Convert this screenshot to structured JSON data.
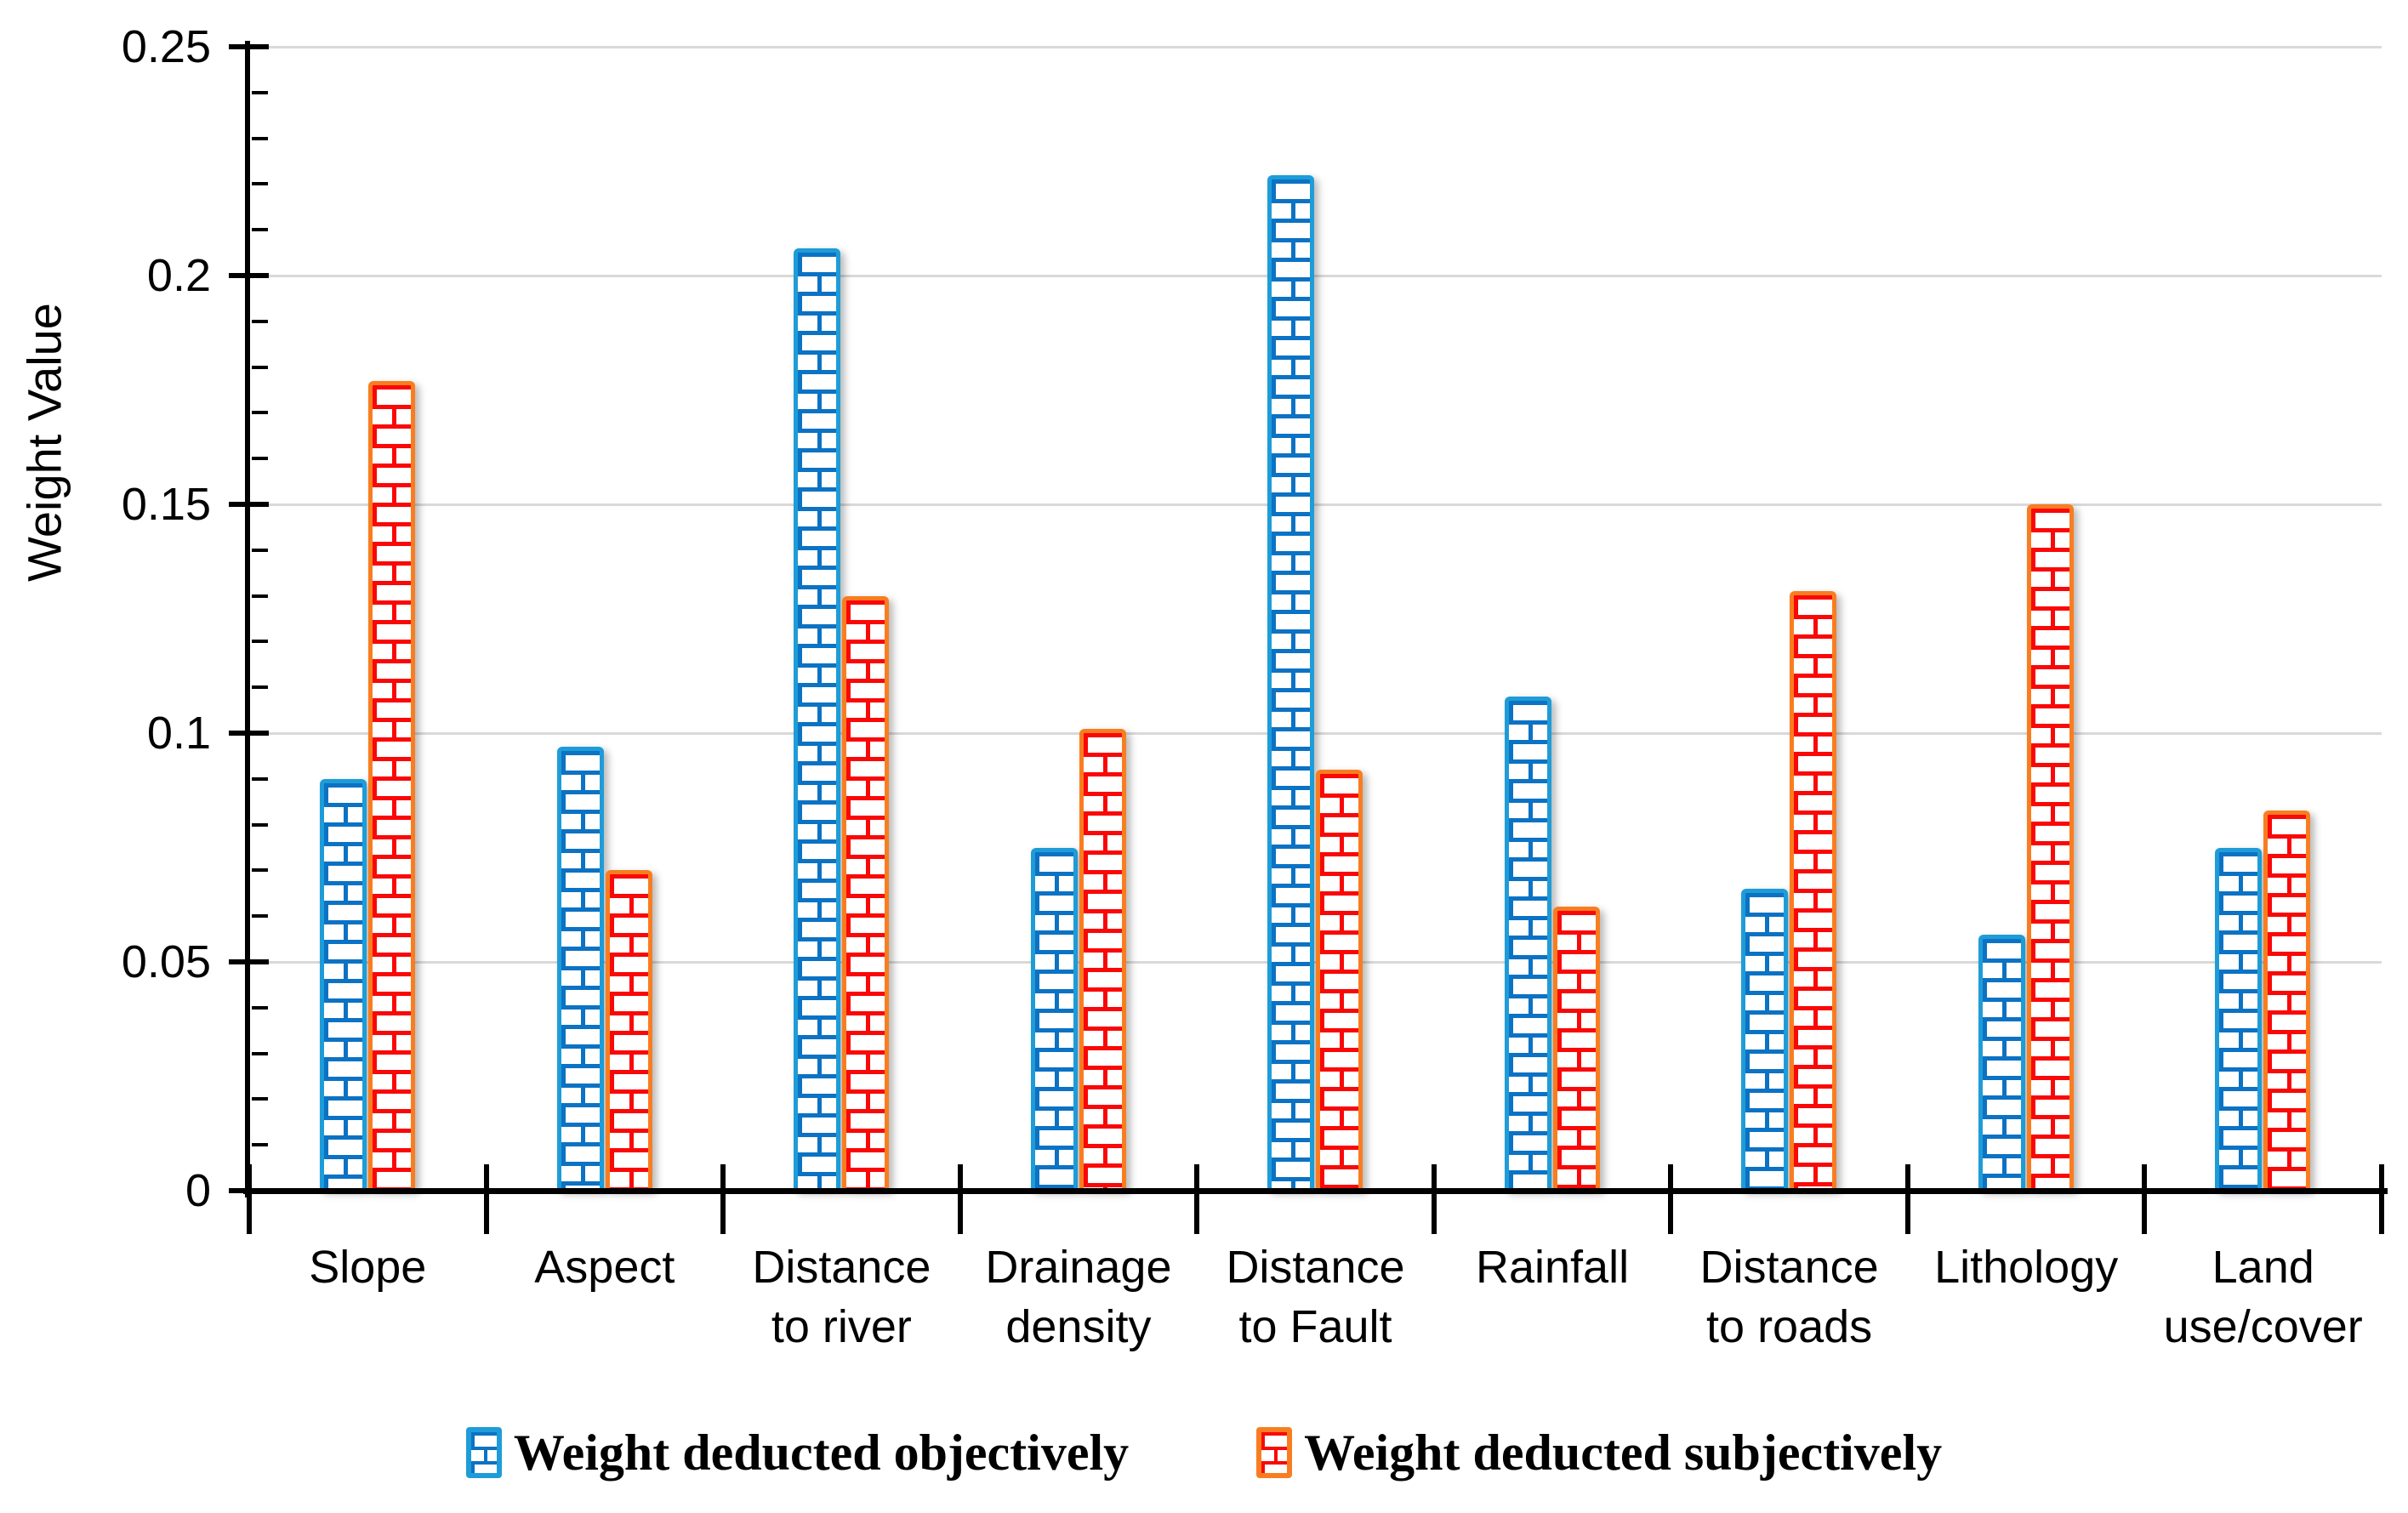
{
  "chart_data": {
    "type": "bar",
    "title": "",
    "ylabel": "Weight Value",
    "xlabel": "",
    "ylim": [
      0,
      0.25
    ],
    "yticks": [
      0,
      0.05,
      0.1,
      0.15,
      0.2,
      0.25
    ],
    "ytick_labels": [
      "0",
      "0.05",
      "0.1",
      "0.15",
      "0.2",
      "0.25"
    ],
    "minor_tick_step": 0.01,
    "grid": true,
    "legend_position": "bottom",
    "background_color": "#FFFFFF",
    "gridline_color": "#D9D9D9",
    "axis_color": "#000000",
    "categories": [
      "Slope",
      "Aspect",
      "Distance\nto river",
      "Drainage\ndensity",
      "Distance\nto Fault",
      "Rainfall",
      "Distance\nto roads",
      "Lithology",
      "Land\nuse/cover"
    ],
    "series": [
      {
        "name": "Weight deducted objectively",
        "pattern": "brick",
        "border_color": "#1E9CD8",
        "pattern_color": "#0B72C4",
        "values": [
          0.09,
          0.097,
          0.206,
          0.075,
          0.222,
          0.108,
          0.066,
          0.056,
          0.075
        ]
      },
      {
        "name": "Weight deducted subjectively",
        "pattern": "brick",
        "border_color": "#F97D20",
        "pattern_color": "#FA0707",
        "values": [
          0.177,
          0.07,
          0.13,
          0.101,
          0.092,
          0.062,
          0.131,
          0.15,
          0.083
        ]
      }
    ]
  }
}
